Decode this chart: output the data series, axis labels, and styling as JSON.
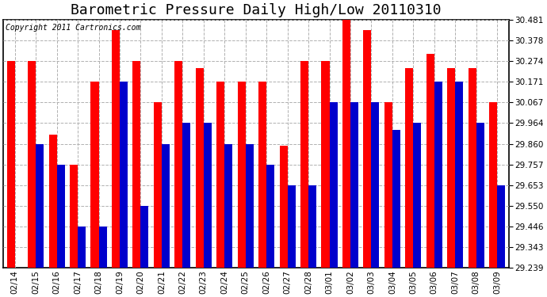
{
  "title": "Barometric Pressure Daily High/Low 20110310",
  "copyright": "Copyright 2011 Cartronics.com",
  "background_color": "#ffffff",
  "plot_background": "#ffffff",
  "grid_color": "#b0b0b0",
  "bar_width": 0.38,
  "ylim": [
    29.239,
    30.481
  ],
  "yticks": [
    29.239,
    29.343,
    29.446,
    29.55,
    29.653,
    29.757,
    29.86,
    29.964,
    30.067,
    30.171,
    30.274,
    30.378,
    30.481
  ],
  "dates": [
    "02/14",
    "02/15",
    "02/16",
    "02/17",
    "02/18",
    "02/19",
    "02/20",
    "02/21",
    "02/22",
    "02/23",
    "02/24",
    "02/25",
    "02/26",
    "02/27",
    "02/28",
    "03/01",
    "03/02",
    "03/03",
    "03/04",
    "03/05",
    "03/06",
    "03/07",
    "03/08",
    "03/09"
  ],
  "highs": [
    30.274,
    30.274,
    29.908,
    29.756,
    30.171,
    30.43,
    30.274,
    30.067,
    30.274,
    30.24,
    30.171,
    30.171,
    30.171,
    29.85,
    30.274,
    30.274,
    30.481,
    30.43,
    30.067,
    30.24,
    30.31,
    30.24,
    30.24,
    30.067
  ],
  "lows": [
    29.239,
    29.86,
    29.756,
    29.446,
    29.446,
    30.171,
    29.55,
    29.86,
    29.964,
    29.964,
    29.86,
    29.86,
    29.756,
    29.653,
    29.653,
    30.067,
    30.067,
    30.067,
    29.93,
    29.964,
    30.171,
    30.171,
    29.964,
    29.653
  ],
  "high_color": "#ff0000",
  "low_color": "#0000cc",
  "title_fontsize": 13,
  "tick_fontsize": 7.5,
  "copyright_fontsize": 7
}
